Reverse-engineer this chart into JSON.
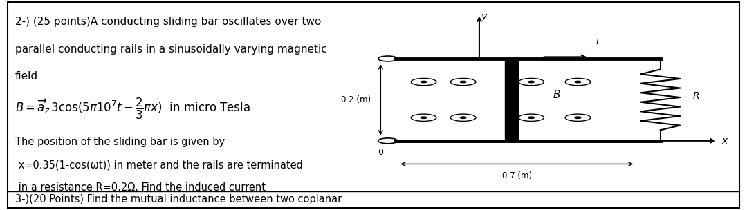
{
  "bg_color": "#ffffff",
  "border_color": "#000000",
  "text_color": "#000000",
  "title_line1": "2-) (25 points)A conducting sliding bar oscillates over two",
  "title_line2": "parallel conducting rails in a sinusoidally varying magnetic",
  "title_line3": "field",
  "body_line1": "The position of the sliding bar is given by",
  "body_line2": " x=0.35(1-cos(ωt)) in meter and the rails are terminated",
  "body_line3": " in a resistance R=0.2Ω. Find the induced current",
  "footer": "3-)(20 Points) Find the mutual inductance between two coplanar",
  "fig_width": 10.8,
  "fig_height": 3.04
}
